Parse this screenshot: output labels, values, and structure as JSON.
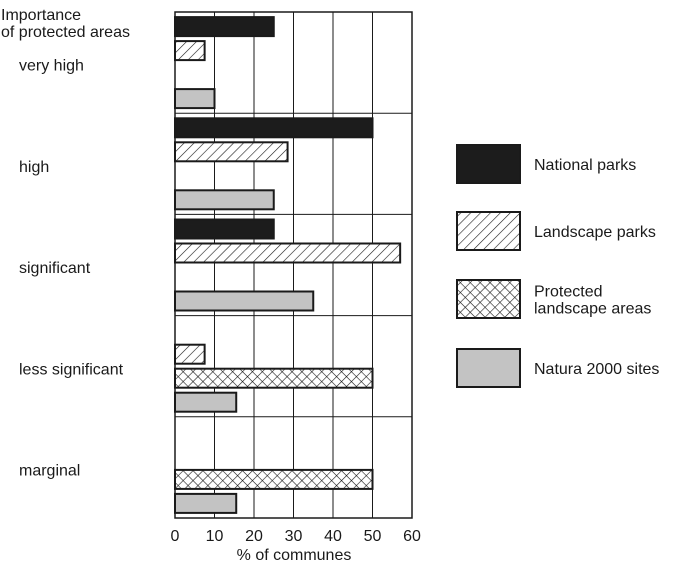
{
  "chart_data": {
    "type": "bar",
    "orientation": "horizontal",
    "y_axis_title_lines": [
      "Importance",
      "of protected areas"
    ],
    "xlabel": "% of communes",
    "xlim": [
      0,
      60
    ],
    "xticks": [
      0,
      10,
      20,
      30,
      40,
      50,
      60
    ],
    "grid": true,
    "legend_position": "right",
    "categories": [
      "very high",
      "high",
      "significant",
      "less significant",
      "marginal"
    ],
    "series": [
      {
        "name": "National parks",
        "fill": "solid",
        "color": "#1c1c1c",
        "values": [
          25,
          50,
          25,
          null,
          null
        ]
      },
      {
        "name": "Landscape parks",
        "fill": "diagonal-hatch",
        "color": "#ffffff",
        "values": [
          7.5,
          28.5,
          57,
          7.5,
          null
        ]
      },
      {
        "name": "Protected landscape areas",
        "legend_lines": [
          "Protected",
          "landscape areas"
        ],
        "fill": "cross-hatch",
        "color": "#ffffff",
        "values": [
          null,
          null,
          null,
          50,
          50
        ]
      },
      {
        "name": "Natura 2000 sites",
        "fill": "solid",
        "color": "#c3c3c3",
        "values": [
          10,
          25,
          35,
          15.5,
          15.5
        ]
      }
    ]
  }
}
